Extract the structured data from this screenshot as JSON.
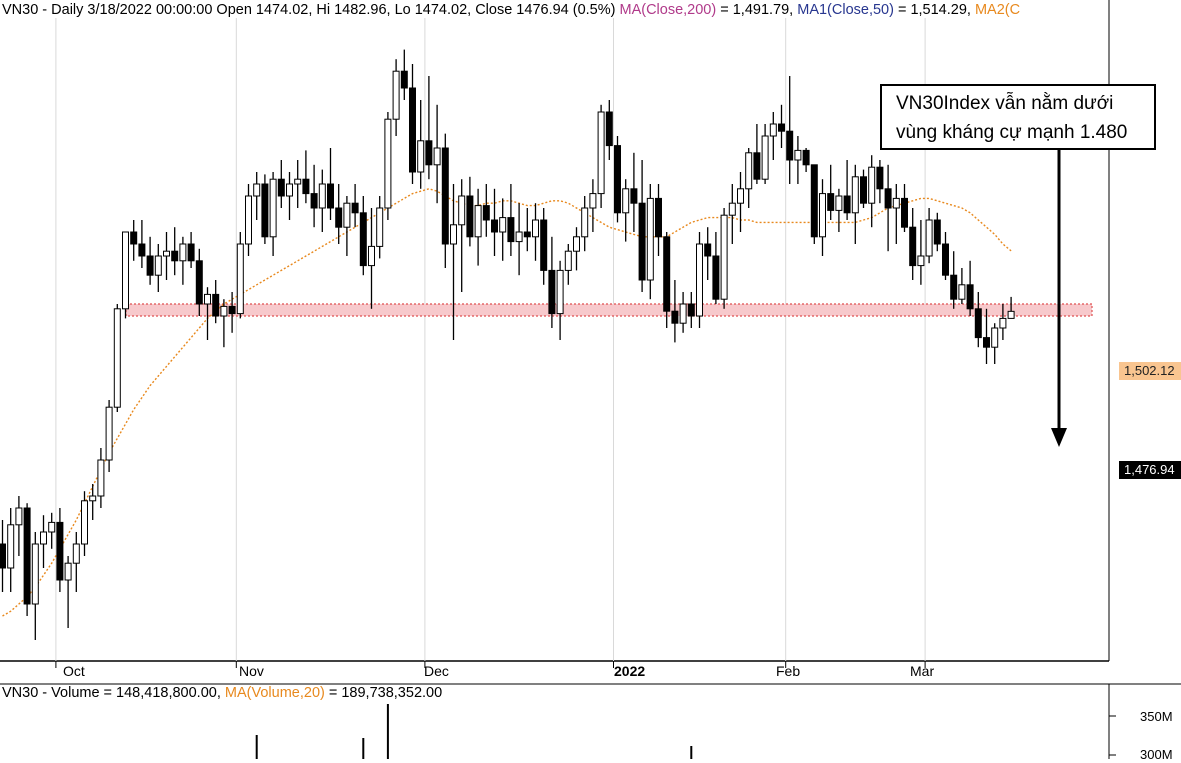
{
  "header": {
    "prefix": "VN30 - Daily 3/18/2022 00:00:00 Open 1474.02, Hi 1482.96, Lo 1474.02, Close 1476.94 (0.5%)",
    "ma200_label": "MA(Close,200)",
    "ma200_value": " = 1,491.79, ",
    "ma50_label": "MA1(Close,50)",
    "ma50_value": " = 1,514.29, ",
    "ma2_label": "MA2(C"
  },
  "volume_header": {
    "prefix": "VN30 - Volume = 148,418,800.00, ",
    "ma_label": "MA(Volume,20)",
    "ma_value": " = 189,738,352.00"
  },
  "annotation": {
    "line1": "VN30Index vẫn nằm dưới",
    "line2": "vùng kháng cự mạnh 1.480"
  },
  "price_tags": {
    "ma": "1,502.12",
    "last": "1,476.94"
  },
  "volume_axis": {
    "label_350": "350M",
    "label_300": "300M"
  },
  "colors": {
    "candle": "#000000",
    "ma_line": "#e8891e",
    "zone_fill": "#f7c9cc",
    "zone_border": "#e05252",
    "ma_tag": "#f9c590"
  },
  "chart_data": {
    "type": "candlestick",
    "title": "VN30 - Daily",
    "x_labels": [
      {
        "text": "Oct",
        "index": 7,
        "bold": false
      },
      {
        "text": "Nov",
        "index": 29,
        "bold": false
      },
      {
        "text": "Dec",
        "index": 52,
        "bold": false
      },
      {
        "text": "2022",
        "index": 75,
        "bold": true
      },
      {
        "text": "Feb",
        "index": 96,
        "bold": false
      },
      {
        "text": "Mar",
        "index": 113,
        "bold": false
      }
    ],
    "resistance_zone": [
      1475,
      1480
    ],
    "ylim": [
      1340,
      1590
    ],
    "candles": [
      [
        1380,
        1390,
        1360,
        1370
      ],
      [
        1370,
        1395,
        1360,
        1388
      ],
      [
        1388,
        1400,
        1375,
        1395
      ],
      [
        1395,
        1397,
        1350,
        1355
      ],
      [
        1355,
        1385,
        1340,
        1380
      ],
      [
        1380,
        1392,
        1370,
        1385
      ],
      [
        1385,
        1393,
        1378,
        1389
      ],
      [
        1389,
        1395,
        1360,
        1365
      ],
      [
        1365,
        1375,
        1345,
        1372
      ],
      [
        1372,
        1385,
        1360,
        1380
      ],
      [
        1380,
        1402,
        1375,
        1398
      ],
      [
        1398,
        1405,
        1390,
        1400
      ],
      [
        1400,
        1420,
        1395,
        1415
      ],
      [
        1415,
        1440,
        1410,
        1437
      ],
      [
        1437,
        1480,
        1435,
        1478
      ],
      [
        1478,
        1510,
        1474,
        1510
      ],
      [
        1510,
        1515,
        1498,
        1505
      ],
      [
        1505,
        1515,
        1495,
        1500
      ],
      [
        1500,
        1508,
        1488,
        1492
      ],
      [
        1492,
        1505,
        1485,
        1500
      ],
      [
        1500,
        1510,
        1490,
        1502
      ],
      [
        1502,
        1512,
        1492,
        1498
      ],
      [
        1498,
        1508,
        1488,
        1505
      ],
      [
        1505,
        1510,
        1495,
        1498
      ],
      [
        1498,
        1503,
        1475,
        1480
      ],
      [
        1480,
        1487,
        1465,
        1484
      ],
      [
        1484,
        1490,
        1472,
        1475
      ],
      [
        1475,
        1482,
        1462,
        1479
      ],
      [
        1479,
        1485,
        1468,
        1476
      ],
      [
        1476,
        1510,
        1474,
        1505
      ],
      [
        1505,
        1530,
        1500,
        1525
      ],
      [
        1525,
        1535,
        1515,
        1530
      ],
      [
        1530,
        1534,
        1505,
        1508
      ],
      [
        1508,
        1535,
        1500,
        1532
      ],
      [
        1532,
        1540,
        1520,
        1525
      ],
      [
        1525,
        1535,
        1515,
        1530
      ],
      [
        1530,
        1540,
        1520,
        1532
      ],
      [
        1532,
        1544,
        1522,
        1526
      ],
      [
        1526,
        1538,
        1512,
        1520
      ],
      [
        1520,
        1536,
        1510,
        1530
      ],
      [
        1530,
        1545,
        1515,
        1520
      ],
      [
        1520,
        1530,
        1505,
        1512
      ],
      [
        1512,
        1525,
        1500,
        1522
      ],
      [
        1522,
        1530,
        1512,
        1518
      ],
      [
        1518,
        1525,
        1492,
        1496
      ],
      [
        1496,
        1520,
        1478,
        1504
      ],
      [
        1504,
        1525,
        1499,
        1520
      ],
      [
        1520,
        1560,
        1515,
        1557
      ],
      [
        1557,
        1582,
        1550,
        1577
      ],
      [
        1577,
        1586,
        1565,
        1570
      ],
      [
        1570,
        1580,
        1530,
        1535
      ],
      [
        1535,
        1565,
        1528,
        1548
      ],
      [
        1548,
        1575,
        1532,
        1538
      ],
      [
        1538,
        1563,
        1522,
        1545
      ],
      [
        1545,
        1551,
        1495,
        1505
      ],
      [
        1505,
        1530,
        1465,
        1513
      ],
      [
        1513,
        1532,
        1485,
        1525
      ],
      [
        1525,
        1533,
        1504,
        1508
      ],
      [
        1508,
        1528,
        1496,
        1521
      ],
      [
        1521,
        1530,
        1508,
        1515
      ],
      [
        1515,
        1528,
        1500,
        1510
      ],
      [
        1510,
        1524,
        1498,
        1516
      ],
      [
        1516,
        1530,
        1500,
        1506
      ],
      [
        1506,
        1522,
        1492,
        1510
      ],
      [
        1510,
        1520,
        1502,
        1508
      ],
      [
        1508,
        1522,
        1498,
        1515
      ],
      [
        1515,
        1520,
        1488,
        1494
      ],
      [
        1494,
        1508,
        1470,
        1476
      ],
      [
        1476,
        1498,
        1465,
        1494
      ],
      [
        1494,
        1505,
        1488,
        1502
      ],
      [
        1502,
        1512,
        1494,
        1508
      ],
      [
        1508,
        1525,
        1502,
        1520
      ],
      [
        1520,
        1532,
        1510,
        1526
      ],
      [
        1526,
        1563,
        1520,
        1560
      ],
      [
        1560,
        1565,
        1540,
        1546
      ],
      [
        1546,
        1550,
        1514,
        1518
      ],
      [
        1518,
        1532,
        1506,
        1528
      ],
      [
        1528,
        1543,
        1510,
        1522
      ],
      [
        1522,
        1540,
        1485,
        1490
      ],
      [
        1490,
        1530,
        1482,
        1524
      ],
      [
        1524,
        1530,
        1500,
        1508
      ],
      [
        1508,
        1510,
        1470,
        1477
      ],
      [
        1477,
        1490,
        1464,
        1472
      ],
      [
        1472,
        1485,
        1468,
        1480
      ],
      [
        1480,
        1485,
        1470,
        1475
      ],
      [
        1475,
        1510,
        1470,
        1505
      ],
      [
        1505,
        1512,
        1490,
        1500
      ],
      [
        1500,
        1510,
        1480,
        1482
      ],
      [
        1482,
        1520,
        1478,
        1517
      ],
      [
        1517,
        1530,
        1505,
        1522
      ],
      [
        1522,
        1535,
        1510,
        1528
      ],
      [
        1528,
        1545,
        1520,
        1543
      ],
      [
        1543,
        1555,
        1530,
        1532
      ],
      [
        1532,
        1555,
        1530,
        1550
      ],
      [
        1550,
        1560,
        1540,
        1555
      ],
      [
        1555,
        1563,
        1545,
        1552
      ],
      [
        1552,
        1575,
        1530,
        1540
      ],
      [
        1540,
        1550,
        1530,
        1544
      ],
      [
        1544,
        1545,
        1535,
        1538
      ],
      [
        1538,
        1538,
        1505,
        1508
      ],
      [
        1508,
        1532,
        1500,
        1526
      ],
      [
        1526,
        1538,
        1515,
        1519
      ],
      [
        1519,
        1528,
        1510,
        1525
      ],
      [
        1525,
        1540,
        1515,
        1518
      ],
      [
        1518,
        1538,
        1505,
        1533
      ],
      [
        1533,
        1536,
        1520,
        1522
      ],
      [
        1522,
        1542,
        1512,
        1537
      ],
      [
        1537,
        1540,
        1522,
        1528
      ],
      [
        1528,
        1538,
        1502,
        1520
      ],
      [
        1520,
        1530,
        1505,
        1524
      ],
      [
        1524,
        1530,
        1510,
        1512
      ],
      [
        1512,
        1520,
        1490,
        1496
      ],
      [
        1496,
        1515,
        1488,
        1500
      ],
      [
        1500,
        1520,
        1497,
        1515
      ],
      [
        1515,
        1518,
        1502,
        1505
      ],
      [
        1505,
        1510,
        1490,
        1492
      ],
      [
        1492,
        1502,
        1478,
        1482
      ],
      [
        1482,
        1495,
        1480,
        1488
      ],
      [
        1488,
        1498,
        1475,
        1478
      ],
      [
        1478,
        1485,
        1462,
        1466
      ],
      [
        1466,
        1478,
        1455,
        1462
      ],
      [
        1462,
        1472,
        1455,
        1470
      ],
      [
        1470,
        1480,
        1465,
        1474
      ],
      [
        1474,
        1482.96,
        1474,
        1476.94
      ]
    ],
    "ma_line": [
      1350,
      1352,
      1355,
      1358,
      1362,
      1367,
      1372,
      1378,
      1384,
      1390,
      1397,
      1404,
      1411,
      1418,
      1424,
      1430,
      1436,
      1441,
      1446,
      1450,
      1454,
      1458,
      1462,
      1466,
      1470,
      1474,
      1477,
      1480,
      1482,
      1484,
      1486,
      1488,
      1490,
      1492,
      1494,
      1496,
      1498,
      1500,
      1502,
      1504,
      1506,
      1508,
      1510,
      1512,
      1514,
      1516,
      1518,
      1520,
      1522,
      1524,
      1526,
      1527,
      1528,
      1527,
      1525,
      1523,
      1522,
      1521,
      1521,
      1522,
      1522,
      1523,
      1523,
      1522,
      1521,
      1521,
      1522,
      1523,
      1523,
      1522,
      1520,
      1518,
      1516,
      1514,
      1512,
      1511,
      1510,
      1509,
      1508,
      1508,
      1508,
      1508,
      1510,
      1512,
      1514,
      1515,
      1516,
      1516,
      1516,
      1516,
      1515,
      1515,
      1514,
      1514,
      1514,
      1514,
      1514,
      1514,
      1514,
      1514,
      1514,
      1514,
      1514,
      1514,
      1514,
      1515,
      1516,
      1518,
      1520,
      1521,
      1522,
      1523,
      1524,
      1524,
      1523,
      1522,
      1521,
      1520,
      1518,
      1515,
      1512,
      1509,
      1505,
      1502.12
    ]
  }
}
